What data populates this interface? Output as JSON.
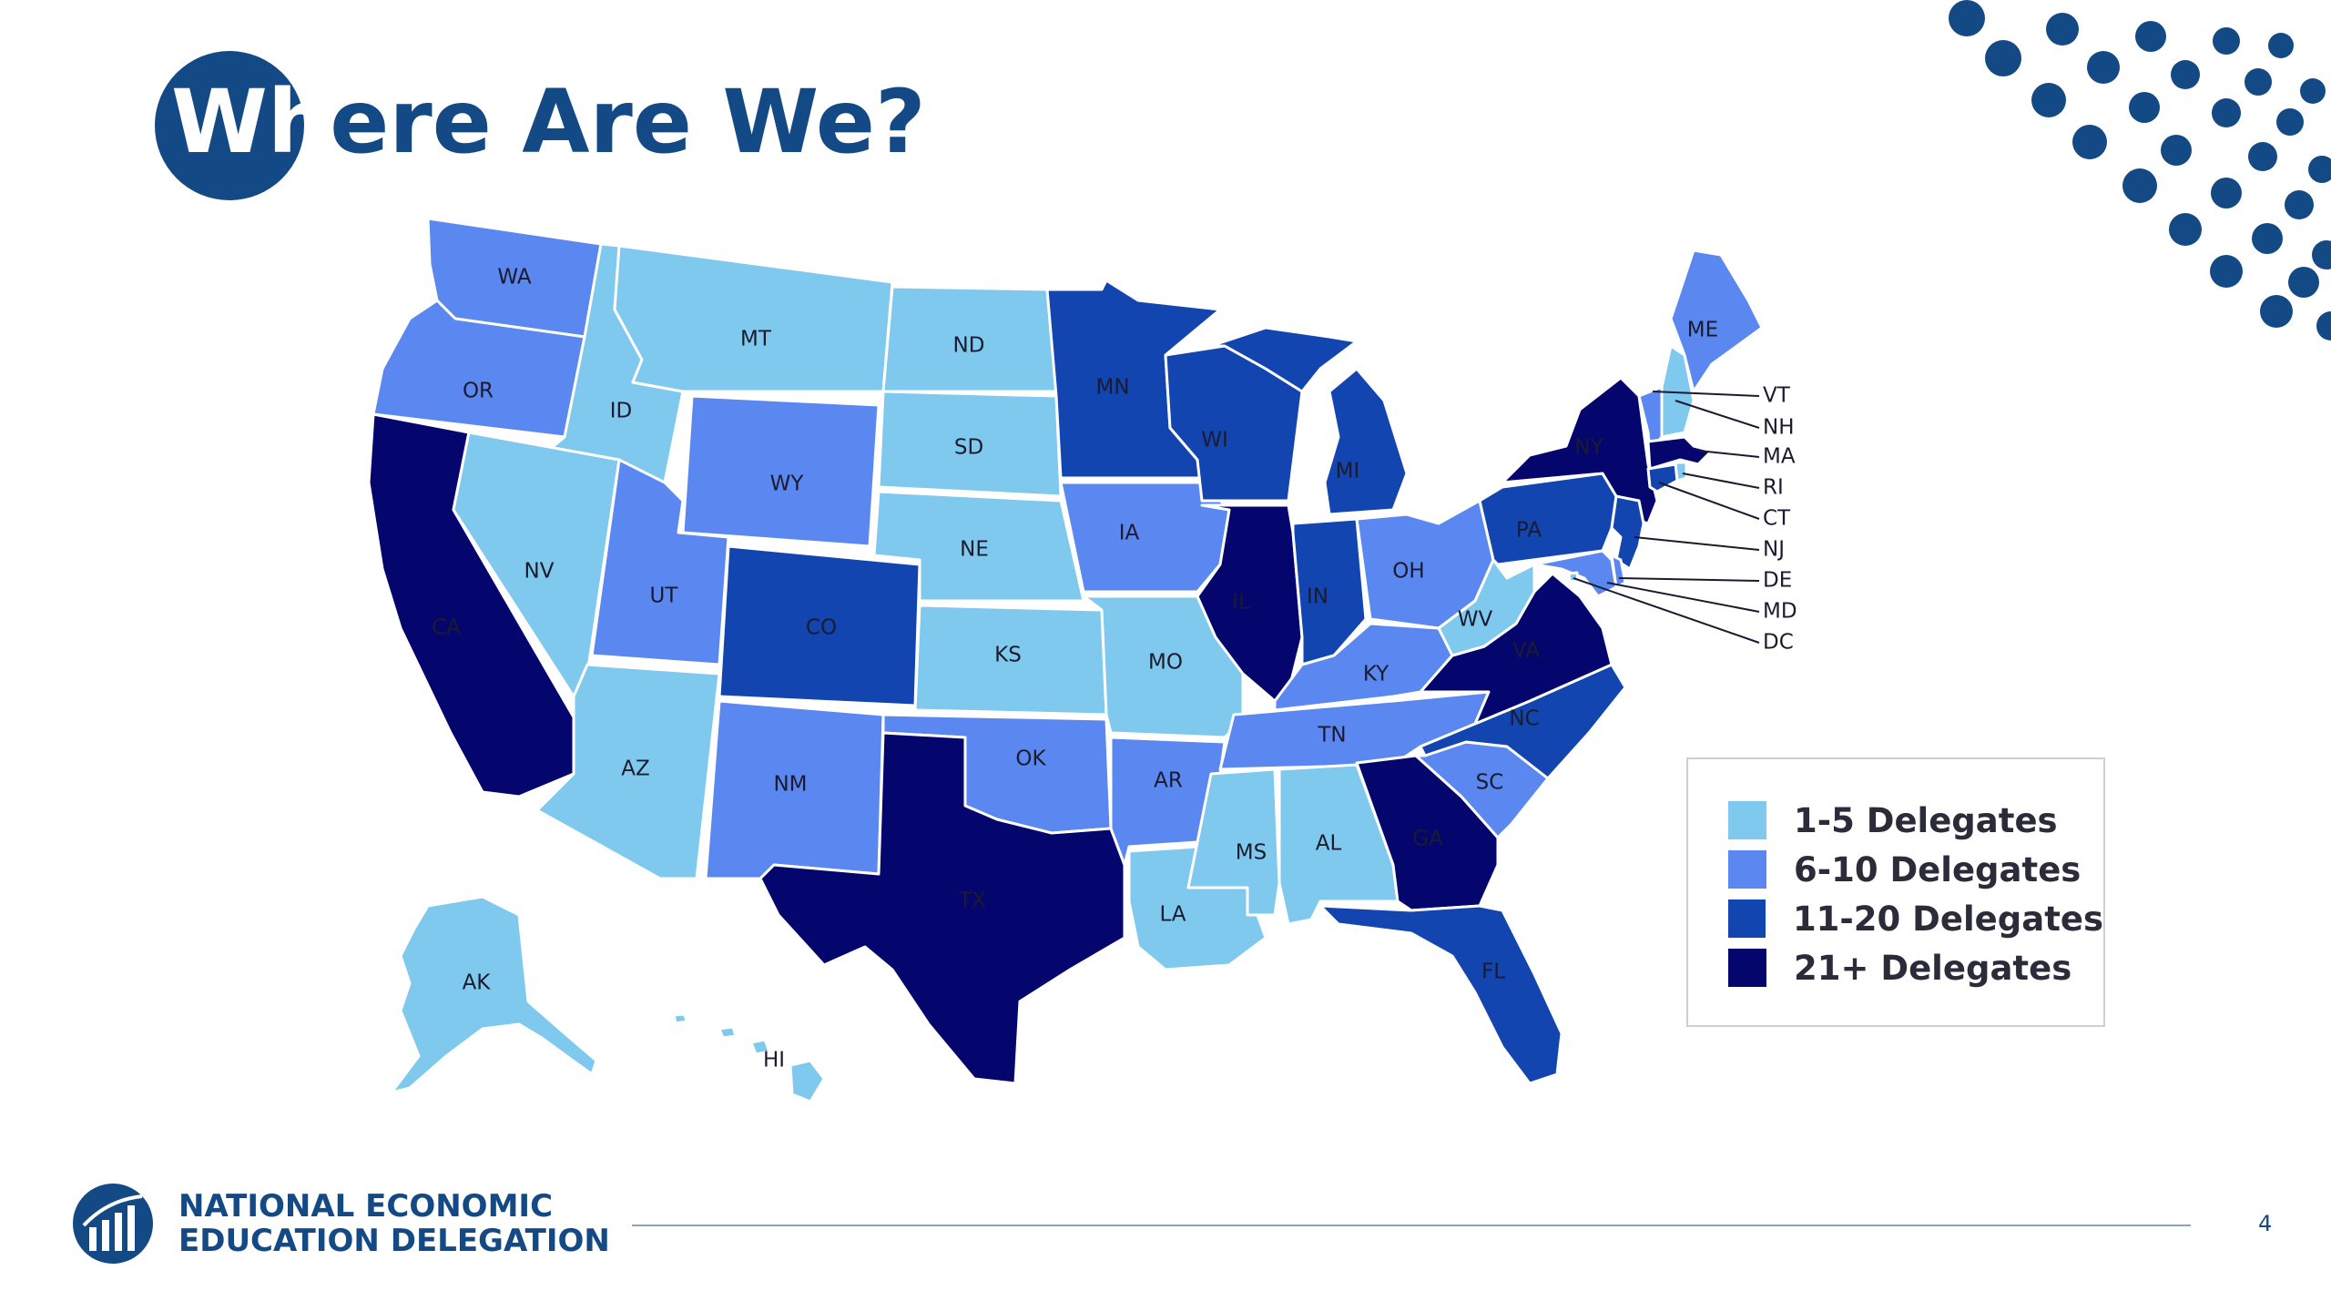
{
  "title": {
    "first": "Wh",
    "rest": "ere Are We?"
  },
  "colors": {
    "brand": "#134a86",
    "tier1": "#7fc8ee",
    "tier2": "#5b87f0",
    "tier3": "#1245b0",
    "tier4": "#05056e"
  },
  "legend": [
    {
      "label": "1-5 Delegates",
      "color": "#7fc8ee"
    },
    {
      "label": "6-10 Delegates",
      "color": "#5b87f0"
    },
    {
      "label": "11-20 Delegates",
      "color": "#1245b0"
    },
    {
      "label": "21+ Delegates",
      "color": "#05056e"
    }
  ],
  "states": [
    {
      "code": "WA",
      "tier": 2
    },
    {
      "code": "OR",
      "tier": 2
    },
    {
      "code": "CA",
      "tier": 4
    },
    {
      "code": "ID",
      "tier": 1
    },
    {
      "code": "NV",
      "tier": 1
    },
    {
      "code": "MT",
      "tier": 1
    },
    {
      "code": "WY",
      "tier": 2
    },
    {
      "code": "UT",
      "tier": 2
    },
    {
      "code": "AZ",
      "tier": 1
    },
    {
      "code": "CO",
      "tier": 3
    },
    {
      "code": "NM",
      "tier": 2
    },
    {
      "code": "ND",
      "tier": 1
    },
    {
      "code": "SD",
      "tier": 1
    },
    {
      "code": "NE",
      "tier": 1
    },
    {
      "code": "KS",
      "tier": 1
    },
    {
      "code": "OK",
      "tier": 2
    },
    {
      "code": "TX",
      "tier": 4
    },
    {
      "code": "MN",
      "tier": 3
    },
    {
      "code": "IA",
      "tier": 2
    },
    {
      "code": "MO",
      "tier": 1
    },
    {
      "code": "AR",
      "tier": 2
    },
    {
      "code": "LA",
      "tier": 1
    },
    {
      "code": "WI",
      "tier": 3
    },
    {
      "code": "IL",
      "tier": 4
    },
    {
      "code": "MI",
      "tier": 3
    },
    {
      "code": "IN",
      "tier": 3
    },
    {
      "code": "OH",
      "tier": 2
    },
    {
      "code": "KY",
      "tier": 2
    },
    {
      "code": "TN",
      "tier": 2
    },
    {
      "code": "MS",
      "tier": 1
    },
    {
      "code": "AL",
      "tier": 1
    },
    {
      "code": "GA",
      "tier": 4
    },
    {
      "code": "FL",
      "tier": 3
    },
    {
      "code": "SC",
      "tier": 2
    },
    {
      "code": "NC",
      "tier": 3
    },
    {
      "code": "VA",
      "tier": 4
    },
    {
      "code": "WV",
      "tier": 1
    },
    {
      "code": "PA",
      "tier": 3
    },
    {
      "code": "NY",
      "tier": 4
    },
    {
      "code": "ME",
      "tier": 2
    },
    {
      "code": "AK",
      "tier": 1
    },
    {
      "code": "HI",
      "tier": 1
    },
    {
      "code": "VT",
      "tier": 2
    },
    {
      "code": "NH",
      "tier": 1
    },
    {
      "code": "MA",
      "tier": 4
    },
    {
      "code": "RI",
      "tier": 1
    },
    {
      "code": "CT",
      "tier": 3
    },
    {
      "code": "NJ",
      "tier": 3
    },
    {
      "code": "DE",
      "tier": 2
    },
    {
      "code": "MD",
      "tier": 2
    },
    {
      "code": "DC",
      "tier": 1
    }
  ],
  "footer": {
    "org_line1": "NATIONAL ECONOMIC",
    "org_line2": "EDUCATION DELEGATION",
    "page_number": "4"
  }
}
